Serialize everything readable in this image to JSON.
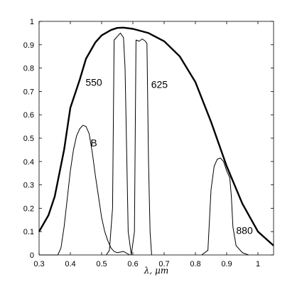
{
  "chart_data": {
    "type": "line",
    "title": "",
    "xlabel": "λ, μm",
    "ylabel": "",
    "xlim": [
      0.3,
      1.05
    ],
    "ylim": [
      0,
      1
    ],
    "grid": false,
    "xticks": [
      "0.3",
      "0.4",
      "0.5",
      "0.6",
      "0.7",
      "0.8",
      "0.9",
      "1"
    ],
    "yticks": [
      "0",
      "0.1",
      "0.2",
      "0.3",
      "0.4",
      "0.5",
      "0.6",
      "0.7",
      "0.8",
      "0.9",
      "1"
    ],
    "series": [
      {
        "name": "",
        "style": "thick",
        "color": "#000000",
        "x": [
          0.3,
          0.33,
          0.35,
          0.38,
          0.4,
          0.43,
          0.45,
          0.48,
          0.5,
          0.53,
          0.55,
          0.57,
          0.6,
          0.65,
          0.7,
          0.75,
          0.8,
          0.85,
          0.9,
          0.95,
          1.0,
          1.05
        ],
        "y": [
          0.1,
          0.17,
          0.25,
          0.45,
          0.63,
          0.75,
          0.84,
          0.91,
          0.94,
          0.963,
          0.972,
          0.973,
          0.968,
          0.95,
          0.915,
          0.85,
          0.74,
          0.57,
          0.38,
          0.22,
          0.1,
          0.04
        ]
      },
      {
        "name": "B",
        "style": "thin",
        "color": "#000000",
        "x": [
          0.3,
          0.36,
          0.37,
          0.38,
          0.39,
          0.4,
          0.41,
          0.42,
          0.43,
          0.44,
          0.45,
          0.46,
          0.47,
          0.48,
          0.49,
          0.5,
          0.51,
          0.52,
          0.53,
          0.54,
          0.55,
          0.57,
          0.59
        ],
        "y": [
          0,
          0,
          0.03,
          0.12,
          0.24,
          0.36,
          0.45,
          0.51,
          0.54,
          0.555,
          0.55,
          0.52,
          0.44,
          0.34,
          0.25,
          0.16,
          0.1,
          0.06,
          0.03,
          0.015,
          0.01,
          0.015,
          0
        ]
      },
      {
        "name": "550",
        "style": "thin",
        "color": "#000000",
        "x": [
          0.515,
          0.525,
          0.535,
          0.54,
          0.56,
          0.57,
          0.575,
          0.585,
          0.595
        ],
        "y": [
          0,
          0.02,
          0.2,
          0.92,
          0.95,
          0.93,
          0.8,
          0.1,
          0
        ]
      },
      {
        "name": "625",
        "style": "thin",
        "color": "#000000",
        "x": [
          0.595,
          0.605,
          0.61,
          0.62,
          0.63,
          0.64,
          0.645,
          0.65,
          0.655,
          0.66
        ],
        "y": [
          0,
          0.1,
          0.92,
          0.915,
          0.925,
          0.915,
          0.905,
          0.4,
          0.1,
          0
        ]
      },
      {
        "name": "880",
        "style": "thin",
        "color": "#000000",
        "x": [
          0.82,
          0.84,
          0.85,
          0.86,
          0.87,
          0.88,
          0.89,
          0.9,
          0.91,
          0.915,
          0.92,
          0.93,
          0.95,
          0.97
        ],
        "y": [
          0,
          0.02,
          0.28,
          0.38,
          0.41,
          0.415,
          0.4,
          0.36,
          0.33,
          0.25,
          0.12,
          0.04,
          0.01,
          0
        ]
      }
    ],
    "annotations": [
      {
        "text": "B",
        "x": 0.475,
        "y": 0.48
      },
      {
        "text": "550",
        "x": 0.475,
        "y": 0.74
      },
      {
        "text": "625",
        "x": 0.685,
        "y": 0.73
      },
      {
        "text": "880",
        "x": 0.957,
        "y": 0.105
      }
    ]
  }
}
